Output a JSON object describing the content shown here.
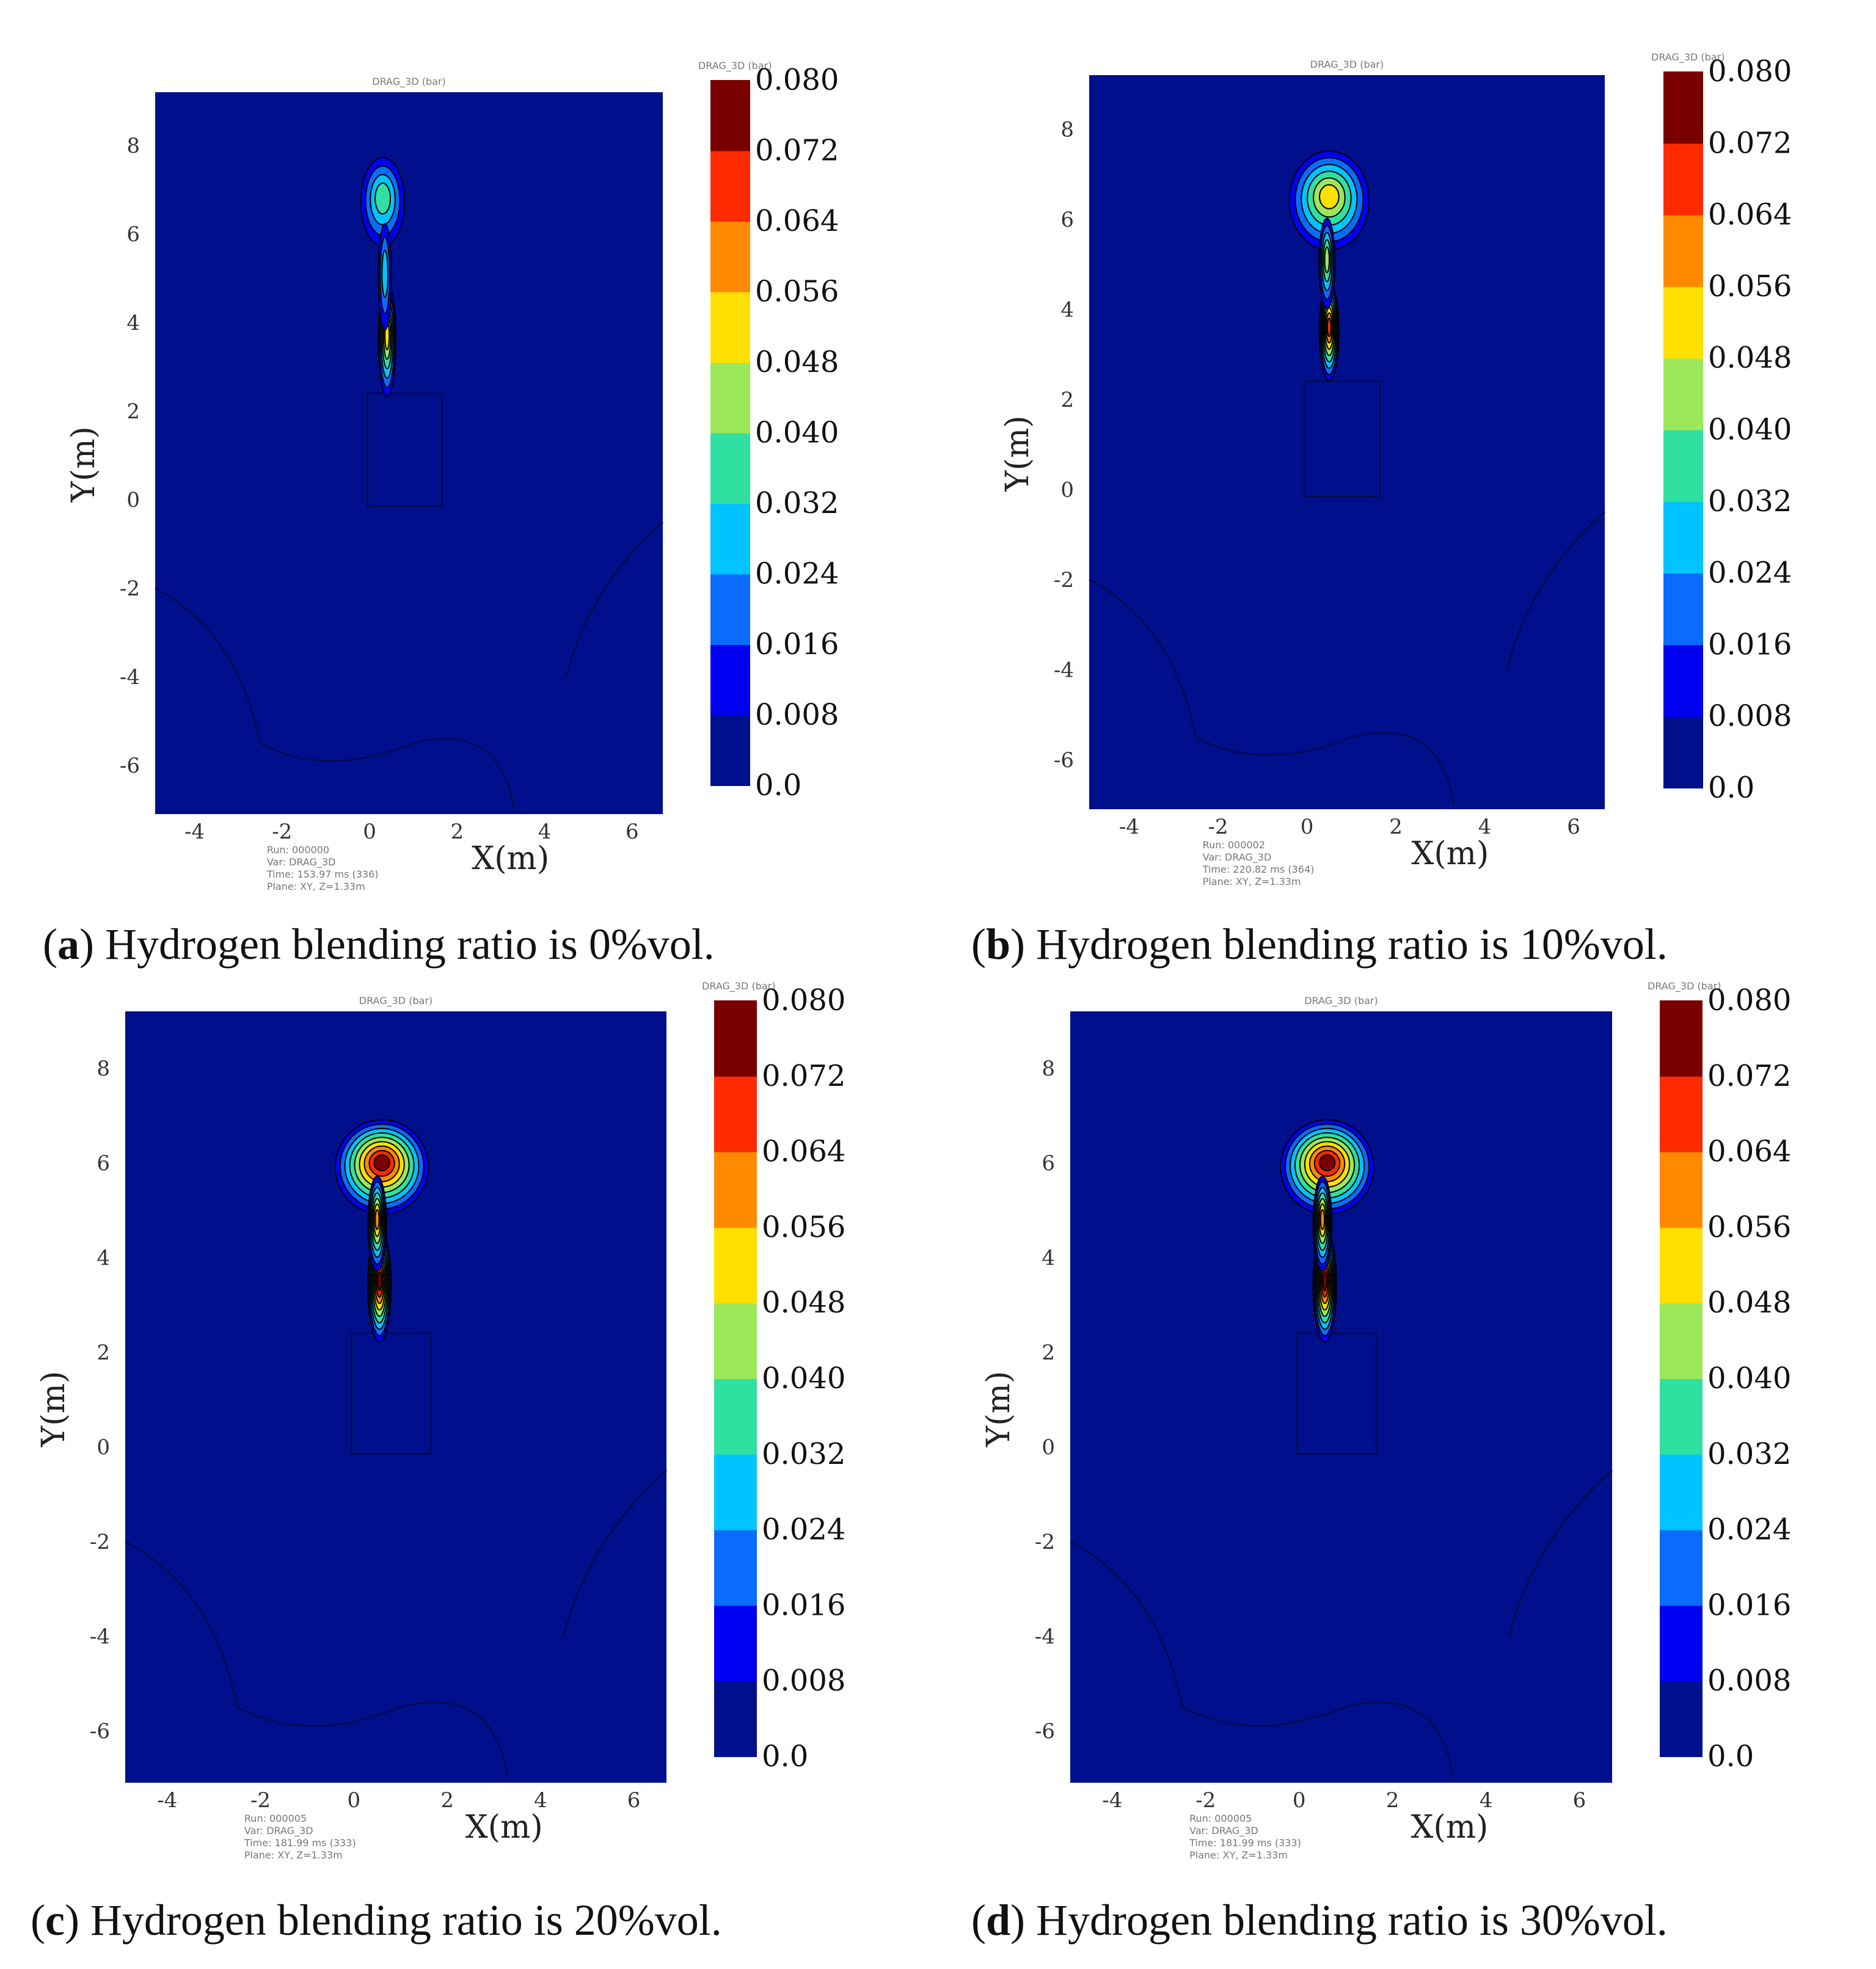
{
  "chart_data": [
    {
      "type": "heatmap",
      "panel_label": "a",
      "caption": "Hydrogen blending ratio is 0%vol.",
      "title": "DRAG_3D (bar)",
      "colorbar_title": "DRAG_3D (bar)",
      "xlabel": "X(m)",
      "ylabel": "Y(m)",
      "xticks": [
        "-4",
        "-2",
        "0",
        "2",
        "4",
        "6"
      ],
      "yticks": [
        "8",
        "6",
        "4",
        "2",
        "0",
        "-2",
        "-4",
        "-6"
      ],
      "xlim": [
        -4.9,
        6.7
      ],
      "ylim": [
        -7.1,
        9.2
      ],
      "colorbar_ticks": [
        "0.0",
        "0.008",
        "0.016",
        "0.024",
        "0.032",
        "0.040",
        "0.048",
        "0.056",
        "0.064",
        "0.072",
        "0.080"
      ],
      "max_value_approx": 0.056,
      "footer": [
        "Run: 000000",
        "Var: DRAG_3D",
        "Time: 153.97 ms (336)",
        "Plane: XY, Z=1.33m"
      ]
    },
    {
      "type": "heatmap",
      "panel_label": "b",
      "caption": "Hydrogen blending ratio is 10%vol.",
      "title": "DRAG_3D (bar)",
      "colorbar_title": "DRAG_3D (bar)",
      "xlabel": "X(m)",
      "ylabel": "Y(m)",
      "xticks": [
        "-4",
        "-2",
        "0",
        "2",
        "4",
        "6"
      ],
      "yticks": [
        "8",
        "6",
        "4",
        "2",
        "0",
        "-2",
        "-4",
        "-6"
      ],
      "xlim": [
        -4.9,
        6.7
      ],
      "ylim": [
        -7.1,
        9.2
      ],
      "colorbar_ticks": [
        "0.0",
        "0.008",
        "0.016",
        "0.024",
        "0.032",
        "0.040",
        "0.048",
        "0.056",
        "0.064",
        "0.072",
        "0.080"
      ],
      "max_value_approx": 0.072,
      "footer": [
        "Run: 000002",
        "Var: DRAG_3D",
        "Time: 220.82 ms (364)",
        "Plane: XY, Z=1.33m"
      ]
    },
    {
      "type": "heatmap",
      "panel_label": "c",
      "caption": "Hydrogen blending ratio is 20%vol.",
      "title": "DRAG_3D (bar)",
      "colorbar_title": "DRAG_3D (bar)",
      "xlabel": "X(m)",
      "ylabel": "Y(m)",
      "xticks": [
        "-4",
        "-2",
        "0",
        "2",
        "4",
        "6"
      ],
      "yticks": [
        "8",
        "6",
        "4",
        "2",
        "0",
        "-2",
        "-4",
        "-6"
      ],
      "xlim": [
        -4.9,
        6.7
      ],
      "ylim": [
        -7.1,
        9.2
      ],
      "colorbar_ticks": [
        "0.0",
        "0.008",
        "0.016",
        "0.024",
        "0.032",
        "0.040",
        "0.048",
        "0.056",
        "0.064",
        "0.072",
        "0.080"
      ],
      "max_value_approx": 0.08,
      "footer": [
        "Run: 000005",
        "Var: DRAG_3D",
        "Time: 181.99 ms (333)",
        "Plane: XY, Z=1.33m"
      ]
    },
    {
      "type": "heatmap",
      "panel_label": "d",
      "caption": "Hydrogen blending ratio is 30%vol.",
      "title": "DRAG_3D (bar)",
      "colorbar_title": "DRAG_3D (bar)",
      "xlabel": "X(m)",
      "ylabel": "Y(m)",
      "xticks": [
        "-4",
        "-2",
        "0",
        "2",
        "4",
        "6"
      ],
      "yticks": [
        "8",
        "6",
        "4",
        "2",
        "0",
        "-2",
        "-4",
        "-6"
      ],
      "xlim": [
        -4.9,
        6.7
      ],
      "ylim": [
        -7.1,
        9.2
      ],
      "colorbar_ticks": [
        "0.0",
        "0.008",
        "0.016",
        "0.024",
        "0.032",
        "0.040",
        "0.048",
        "0.056",
        "0.064",
        "0.072",
        "0.080"
      ],
      "max_value_approx": 0.08,
      "footer": [
        "Run: 000005",
        "Var: DRAG_3D",
        "Time: 181.99 ms (333)",
        "Plane: XY, Z=1.33m"
      ]
    }
  ],
  "colors": {
    "levels": [
      "#00108c",
      "#0000f0",
      "#0a6cff",
      "#00c4ff",
      "#30e0a0",
      "#9ce85a",
      "#ffe000",
      "#ff8a00",
      "#ff2a00",
      "#7a0000"
    ],
    "background": "#00108c"
  }
}
